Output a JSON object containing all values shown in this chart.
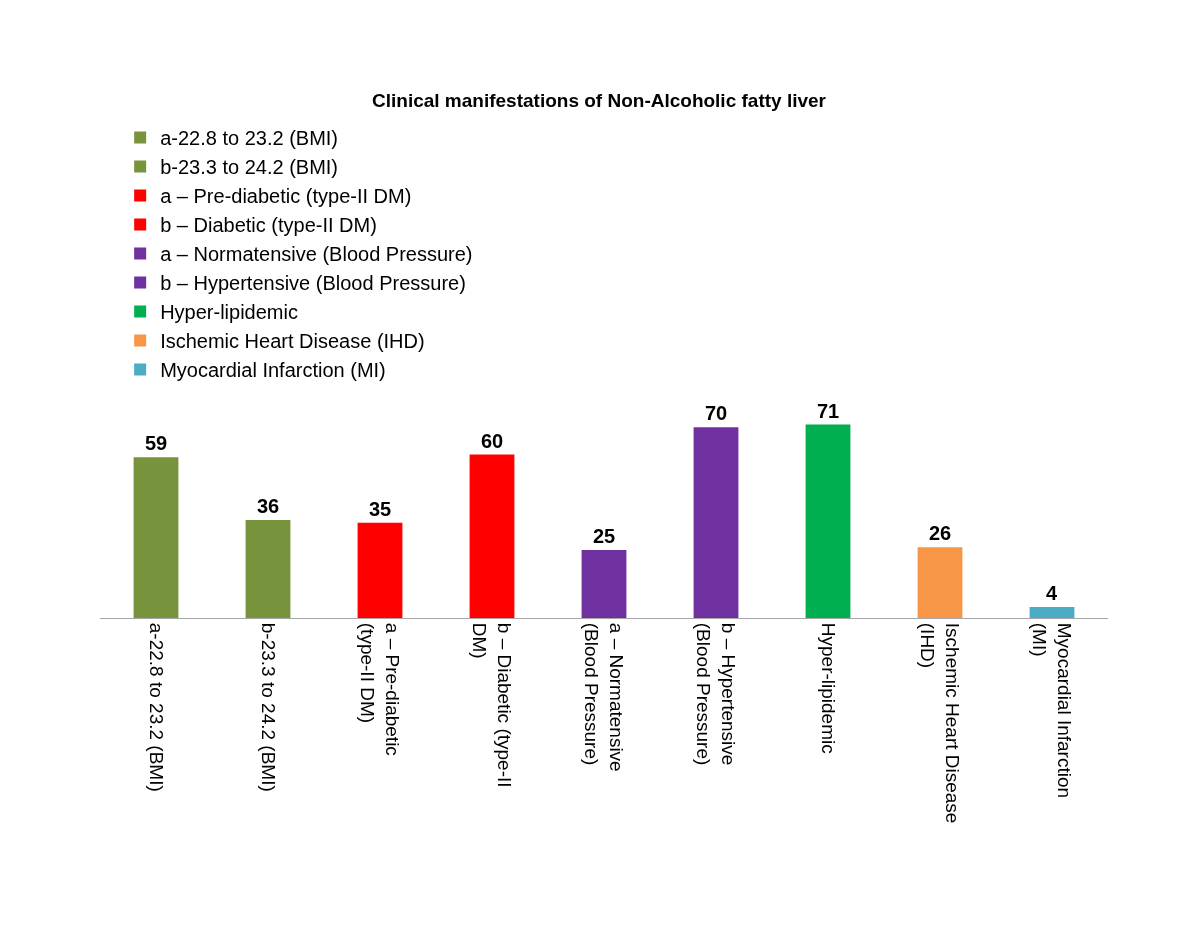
{
  "chart_data": {
    "type": "bar",
    "title": "Clinical manifestations of Non-Alcoholic fatty liver",
    "categories": [
      "a-22.8 to 23.2 (BMI)",
      "b-23.3 to 24.2 (BMI)",
      "a – Pre-diabetic (type-II DM)",
      "b – Diabetic (type-II DM)",
      "a – Normatensive (Blood Pressure)",
      "b – Hypertensive (Blood Pressure)",
      "Hyper-lipidemic",
      "Ischemic Heart Disease (IHD)",
      "Myocardial Infarction (MI)"
    ],
    "series": [
      {
        "name": "a-22.8 to 23.2 (BMI)",
        "color": "#77933c",
        "values": [
          59,
          null,
          null,
          null,
          null,
          null,
          null,
          null,
          null
        ]
      },
      {
        "name": "b-23.3 to 24.2 (BMI)",
        "color": "#77933c",
        "values": [
          null,
          36,
          null,
          null,
          null,
          null,
          null,
          null,
          null
        ]
      },
      {
        "name": "a – Pre-diabetic (type-II DM)",
        "color": "#ff0000",
        "values": [
          null,
          null,
          35,
          null,
          null,
          null,
          null,
          null,
          null
        ]
      },
      {
        "name": "b – Diabetic (type-II DM)",
        "color": "#ff0000",
        "values": [
          null,
          null,
          null,
          60,
          null,
          null,
          null,
          null,
          null
        ]
      },
      {
        "name": "a – Normatensive (Blood Pressure)",
        "color": "#7030a0",
        "values": [
          null,
          null,
          null,
          null,
          25,
          null,
          null,
          null,
          null
        ]
      },
      {
        "name": "b – Hypertensive (Blood Pressure)",
        "color": "#7030a0",
        "values": [
          null,
          null,
          null,
          null,
          null,
          70,
          null,
          null,
          null
        ]
      },
      {
        "name": "Hyper-lipidemic",
        "color": "#00b050",
        "values": [
          null,
          null,
          null,
          null,
          null,
          null,
          71,
          null,
          null
        ]
      },
      {
        "name": "Ischemic Heart Disease (IHD)",
        "color": "#f79646",
        "values": [
          null,
          null,
          null,
          null,
          null,
          null,
          null,
          26,
          null
        ]
      },
      {
        "name": "Myocardial Infarction (MI)",
        "color": "#4bacc6",
        "values": [
          null,
          null,
          null,
          null,
          null,
          null,
          null,
          null,
          4
        ]
      }
    ],
    "data_labels": true,
    "legend": "top",
    "grid": false
  }
}
